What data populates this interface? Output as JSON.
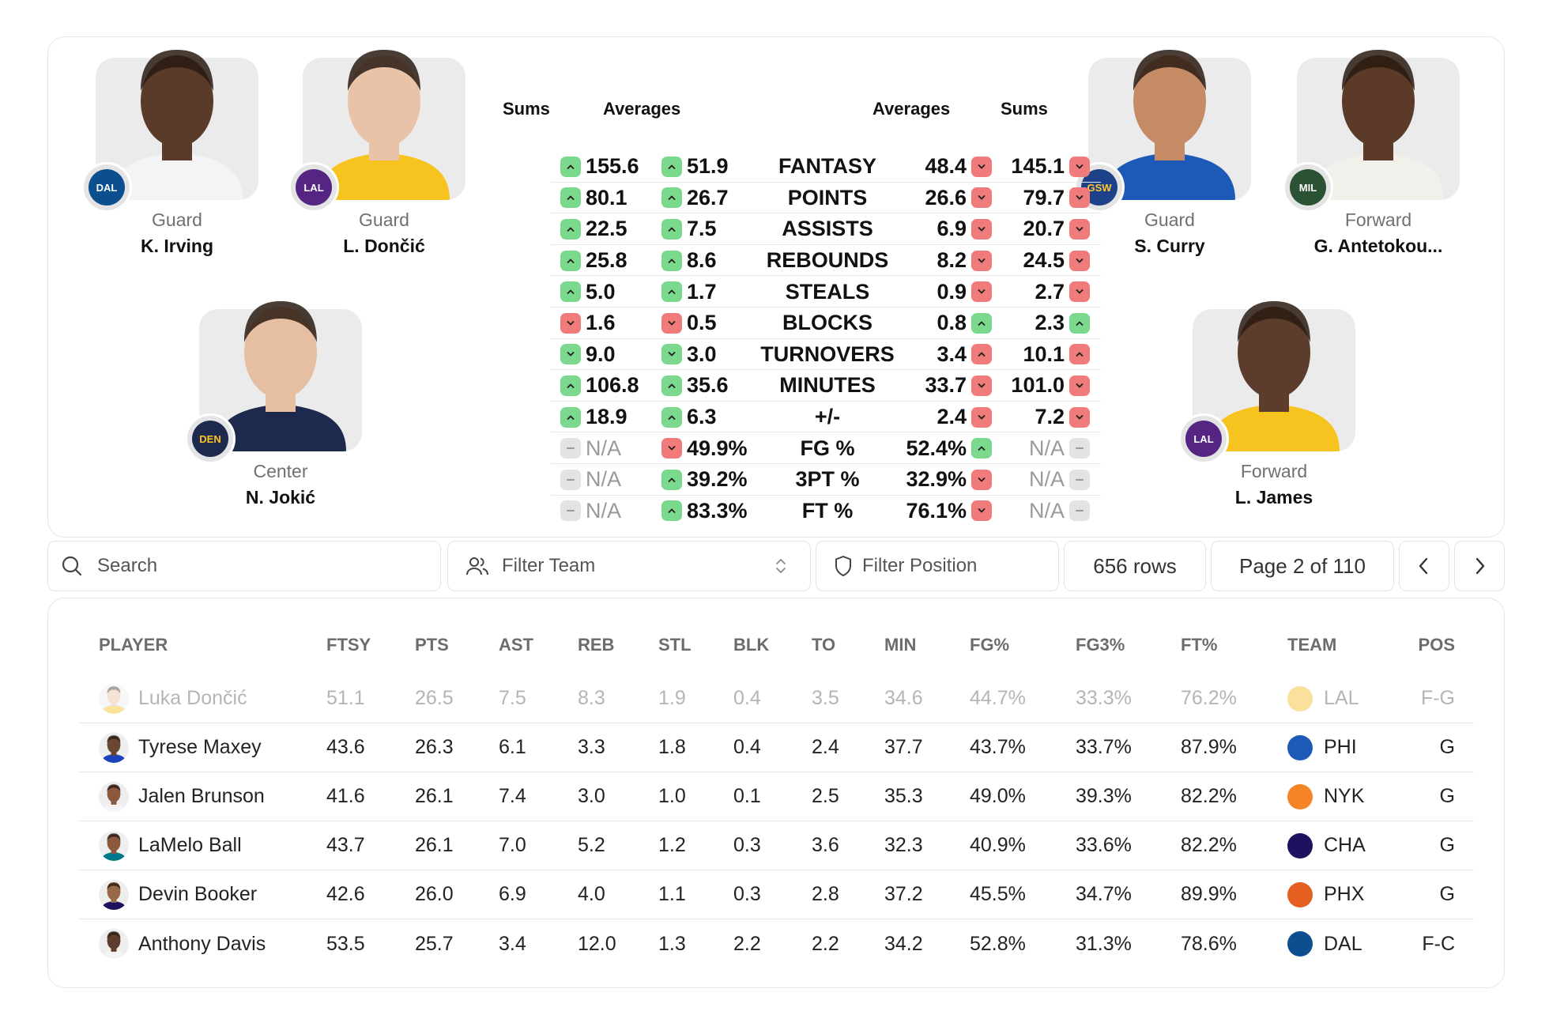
{
  "compare": {
    "left_players": [
      {
        "position": "Guard",
        "name": "K. Irving",
        "team": "DAL",
        "team_color": "#0b4f8f",
        "skin": "#5a3a28",
        "jersey": "#f4f4f4"
      },
      {
        "position": "Guard",
        "name": "L. Dončić",
        "team": "LAL",
        "team_color": "#552583",
        "skin": "#e8c3a8",
        "jersey": "#f7c31f"
      },
      {
        "position": "Center",
        "name": "N. Jokić",
        "team": "DEN",
        "team_color": "#1d2a4e",
        "skin": "#e6bfa2",
        "jersey": "#1d2a4e"
      }
    ],
    "right_players": [
      {
        "position": "Guard",
        "name": "S. Curry",
        "team": "GSW",
        "team_color": "#1d428a",
        "skin": "#c48b64",
        "jersey": "#1d5ab8"
      },
      {
        "position": "Forward",
        "name": "G. Antetokou...",
        "team": "MIL",
        "team_color": "#2c5234",
        "skin": "#5b3b27",
        "jersey": "#f2f0ea"
      },
      {
        "position": "Forward",
        "name": "L. James",
        "team": "LAL",
        "team_color": "#552583",
        "skin": "#5c3c2a",
        "jersey": "#f7c31f"
      }
    ],
    "headers": {
      "left_sums": "Sums",
      "left_averages": "Averages",
      "right_averages": "Averages",
      "right_sums": "Sums"
    },
    "rows": [
      {
        "label": "FANTASY",
        "lsum": "155.6",
        "lsum_t": "up",
        "lavg": "51.9",
        "lavg_t": "up",
        "ravg": "48.4",
        "ravg_t": "down",
        "rsum": "145.1",
        "rsum_t": "down"
      },
      {
        "label": "POINTS",
        "lsum": "80.1",
        "lsum_t": "up",
        "lavg": "26.7",
        "lavg_t": "up",
        "ravg": "26.6",
        "ravg_t": "down",
        "rsum": "79.7",
        "rsum_t": "down"
      },
      {
        "label": "ASSISTS",
        "lsum": "22.5",
        "lsum_t": "up",
        "lavg": "7.5",
        "lavg_t": "up",
        "ravg": "6.9",
        "ravg_t": "down",
        "rsum": "20.7",
        "rsum_t": "down"
      },
      {
        "label": "REBOUNDS",
        "lsum": "25.8",
        "lsum_t": "up",
        "lavg": "8.6",
        "lavg_t": "up",
        "ravg": "8.2",
        "ravg_t": "down",
        "rsum": "24.5",
        "rsum_t": "down"
      },
      {
        "label": "STEALS",
        "lsum": "5.0",
        "lsum_t": "up",
        "lavg": "1.7",
        "lavg_t": "up",
        "ravg": "0.9",
        "ravg_t": "down",
        "rsum": "2.7",
        "rsum_t": "down"
      },
      {
        "label": "BLOCKS",
        "lsum": "1.6",
        "lsum_t": "down",
        "lavg": "0.5",
        "lavg_t": "down",
        "ravg": "0.8",
        "ravg_t": "up",
        "rsum": "2.3",
        "rsum_t": "up"
      },
      {
        "label": "TURNOVERS",
        "lsum": "9.0",
        "lsum_t": "good-down",
        "lavg": "3.0",
        "lavg_t": "good-down",
        "ravg": "3.4",
        "ravg_t": "bad-up",
        "rsum": "10.1",
        "rsum_t": "bad-up"
      },
      {
        "label": "MINUTES",
        "lsum": "106.8",
        "lsum_t": "up",
        "lavg": "35.6",
        "lavg_t": "up",
        "ravg": "33.7",
        "ravg_t": "down",
        "rsum": "101.0",
        "rsum_t": "down"
      },
      {
        "label": "+/-",
        "lsum": "18.9",
        "lsum_t": "up",
        "lavg": "6.3",
        "lavg_t": "up",
        "ravg": "2.4",
        "ravg_t": "down",
        "rsum": "7.2",
        "rsum_t": "down"
      },
      {
        "label": "FG %",
        "lsum": "N/A",
        "lsum_t": "neutral",
        "lavg": "49.9%",
        "lavg_t": "down",
        "ravg": "52.4%",
        "ravg_t": "up",
        "rsum": "N/A",
        "rsum_t": "neutral"
      },
      {
        "label": "3PT %",
        "lsum": "N/A",
        "lsum_t": "neutral",
        "lavg": "39.2%",
        "lavg_t": "up",
        "ravg": "32.9%",
        "ravg_t": "down",
        "rsum": "N/A",
        "rsum_t": "neutral"
      },
      {
        "label": "FT %",
        "lsum": "N/A",
        "lsum_t": "neutral",
        "lavg": "83.3%",
        "lavg_t": "up",
        "ravg": "76.1%",
        "ravg_t": "down",
        "rsum": "N/A",
        "rsum_t": "neutral"
      }
    ]
  },
  "toolbar": {
    "search_placeholder": "Search",
    "filter_team_placeholder": "Filter Team",
    "filter_position_placeholder": "Filter Position",
    "rows_count": "656 rows",
    "page_label": "Page 2 of 110"
  },
  "table": {
    "columns": [
      "PLAYER",
      "FTSY",
      "PTS",
      "AST",
      "REB",
      "STL",
      "BLK",
      "TO",
      "MIN",
      "FG%",
      "FG3%",
      "FT%",
      "TEAM",
      "POS"
    ],
    "rows": [
      {
        "player": "Luka Dončić",
        "ftsy": "51.1",
        "pts": "26.5",
        "ast": "7.5",
        "reb": "8.3",
        "stl": "1.9",
        "blk": "0.4",
        "to": "3.5",
        "min": "34.6",
        "fg": "44.7%",
        "fg3": "33.3%",
        "ft": "76.2%",
        "team": "LAL",
        "pos": "F-G",
        "team_color": "#f7b924",
        "skin": "#e8c3a8",
        "jersey": "#f7c31f"
      },
      {
        "player": "Tyrese Maxey",
        "ftsy": "43.6",
        "pts": "26.3",
        "ast": "6.1",
        "reb": "3.3",
        "stl": "1.8",
        "blk": "0.4",
        "to": "2.4",
        "min": "37.7",
        "fg": "43.7%",
        "fg3": "33.7%",
        "ft": "87.9%",
        "team": "PHI",
        "pos": "G",
        "team_color": "#1d5ab8",
        "skin": "#6b4632",
        "jersey": "#1d42ba"
      },
      {
        "player": "Jalen Brunson",
        "ftsy": "41.6",
        "pts": "26.1",
        "ast": "7.4",
        "reb": "3.0",
        "stl": "1.0",
        "blk": "0.1",
        "to": "2.5",
        "min": "35.3",
        "fg": "49.0%",
        "fg3": "39.3%",
        "ft": "82.2%",
        "team": "NYK",
        "pos": "G",
        "team_color": "#f58426",
        "skin": "#8a5a3c",
        "jersey": "#f4f4f4"
      },
      {
        "player": "LaMelo Ball",
        "ftsy": "43.7",
        "pts": "26.1",
        "ast": "7.0",
        "reb": "5.2",
        "stl": "1.2",
        "blk": "0.3",
        "to": "3.6",
        "min": "32.3",
        "fg": "40.9%",
        "fg3": "33.6%",
        "ft": "82.2%",
        "team": "CHA",
        "pos": "G",
        "team_color": "#1d1160",
        "skin": "#8a5a3c",
        "jersey": "#00788c"
      },
      {
        "player": "Devin Booker",
        "ftsy": "42.6",
        "pts": "26.0",
        "ast": "6.9",
        "reb": "4.0",
        "stl": "1.1",
        "blk": "0.3",
        "to": "2.8",
        "min": "37.2",
        "fg": "45.5%",
        "fg3": "34.7%",
        "ft": "89.9%",
        "team": "PHX",
        "pos": "G",
        "team_color": "#e56020",
        "skin": "#9a6a48",
        "jersey": "#1d1160"
      },
      {
        "player": "Anthony Davis",
        "ftsy": "53.5",
        "pts": "25.7",
        "ast": "3.4",
        "reb": "12.0",
        "stl": "1.3",
        "blk": "2.2",
        "to": "2.2",
        "min": "34.2",
        "fg": "52.8%",
        "fg3": "31.3%",
        "ft": "78.6%",
        "team": "DAL",
        "pos": "F-C",
        "team_color": "#0b4f8f",
        "skin": "#5c3c2a",
        "jersey": "#f4f4f4"
      }
    ]
  }
}
